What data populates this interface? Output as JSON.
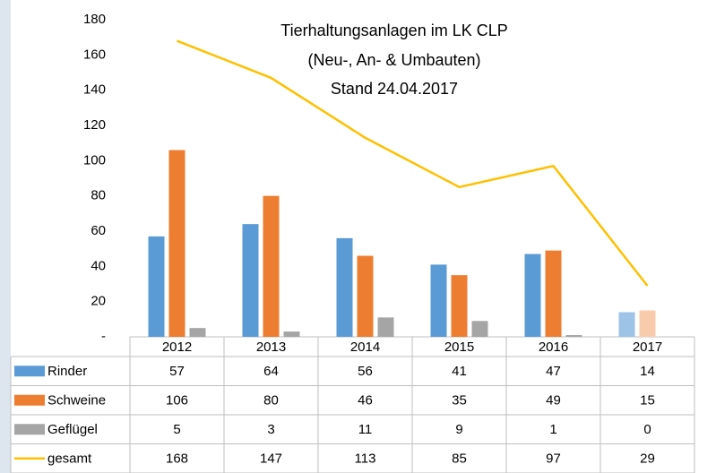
{
  "chart_data": {
    "type": "bar",
    "title": [
      "Tierhaltungsanlagen im LK CLP",
      "(Neu-, An- & Umbauten)",
      "Stand 24.04.2017"
    ],
    "categories": [
      "2012",
      "2013",
      "2014",
      "2015",
      "2016",
      "2017"
    ],
    "series": [
      {
        "name": "Rinder",
        "type": "bar",
        "color": "#5b9bd5",
        "colors": [
          "#5b9bd5",
          "#5b9bd5",
          "#5b9bd5",
          "#5b9bd5",
          "#5b9bd5",
          "#9dc3e6"
        ],
        "values": [
          57,
          64,
          56,
          41,
          47,
          14
        ]
      },
      {
        "name": "Schweine",
        "type": "bar",
        "color": "#ed7d31",
        "colors": [
          "#ed7d31",
          "#ed7d31",
          "#ed7d31",
          "#ed7d31",
          "#ed7d31",
          "#f8cbad"
        ],
        "values": [
          106,
          80,
          46,
          35,
          49,
          15
        ]
      },
      {
        "name": "Geflügel",
        "type": "bar",
        "color": "#a5a5a5",
        "colors": [
          "#a5a5a5",
          "#a5a5a5",
          "#a5a5a5",
          "#a5a5a5",
          "#a5a5a5",
          "#dbdbdb"
        ],
        "values": [
          5,
          3,
          11,
          9,
          1,
          0
        ]
      },
      {
        "name": "gesamt",
        "type": "line",
        "color": "#ffc000",
        "values": [
          168,
          147,
          113,
          85,
          97,
          29
        ]
      }
    ],
    "ylim": [
      0,
      180
    ],
    "yticks": [
      {
        "value": 0,
        "label": "-"
      },
      20,
      40,
      60,
      80,
      100,
      120,
      140,
      160,
      180
    ],
    "grid": false,
    "data_table": true
  }
}
